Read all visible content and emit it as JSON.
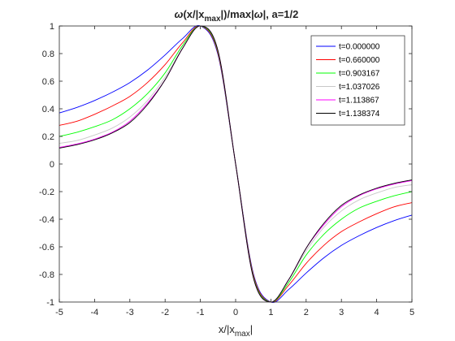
{
  "chart_data": {
    "type": "line",
    "title": "ω(x/|x_max|)/max|ω|, a=1/2",
    "title_parts": {
      "omega_symbol": "ω",
      "open": "(x/|x",
      "subscript": "max",
      "close": "|)/max|",
      "omega_symbol2": "ω",
      "tail": "|, a=1/2"
    },
    "xlabel": "x/|x_max|",
    "xlabel_parts": {
      "base": "x/|x",
      "subscript": "max",
      "close": "|"
    },
    "ylabel": "",
    "xlim": [
      -5,
      5
    ],
    "ylim": [
      -1,
      1
    ],
    "xticks": [
      -5,
      -4,
      -3,
      -2,
      -1,
      0,
      1,
      2,
      3,
      4,
      5
    ],
    "yticks": [
      -1,
      -0.8,
      -0.6,
      -0.4,
      -0.2,
      0,
      0.2,
      0.4,
      0.6,
      0.8,
      1
    ],
    "xtick_labels": [
      "-5",
      "-4",
      "-3",
      "-2",
      "-1",
      "0",
      "1",
      "2",
      "3",
      "4",
      "5"
    ],
    "ytick_labels": [
      "-1",
      "-0.8",
      "-0.6",
      "-0.4",
      "-0.2",
      "0",
      "0.2",
      "0.4",
      "0.6",
      "0.8",
      "1"
    ],
    "grid": false,
    "legend_position": "top-right",
    "series": [
      {
        "name": "t=0.000000",
        "color": "#0000ff",
        "points": [
          [
            -5,
            0.37
          ],
          [
            -4.5,
            0.41
          ],
          [
            -4,
            0.46
          ],
          [
            -3.5,
            0.52
          ],
          [
            -3,
            0.59
          ],
          [
            -2.5,
            0.68
          ],
          [
            -2,
            0.79
          ],
          [
            -1.5,
            0.91
          ],
          [
            -1,
            1.0
          ],
          [
            -0.5,
            0.79
          ],
          [
            0,
            0.0
          ],
          [
            0.5,
            -0.79
          ],
          [
            1,
            -1.0
          ],
          [
            1.5,
            -0.91
          ],
          [
            2,
            -0.79
          ],
          [
            2.5,
            -0.68
          ],
          [
            3,
            -0.59
          ],
          [
            3.5,
            -0.52
          ],
          [
            4,
            -0.46
          ],
          [
            4.5,
            -0.41
          ],
          [
            5,
            -0.37
          ]
        ]
      },
      {
        "name": "t=0.660000",
        "color": "#ff0000",
        "points": [
          [
            -5,
            0.28
          ],
          [
            -4.5,
            0.31
          ],
          [
            -4,
            0.36
          ],
          [
            -3.5,
            0.42
          ],
          [
            -3,
            0.49
          ],
          [
            -2.5,
            0.59
          ],
          [
            -2,
            0.72
          ],
          [
            -1.5,
            0.88
          ],
          [
            -1,
            1.0
          ],
          [
            -0.5,
            0.8
          ],
          [
            0,
            0.0
          ],
          [
            0.5,
            -0.8
          ],
          [
            1,
            -1.0
          ],
          [
            1.5,
            -0.88
          ],
          [
            2,
            -0.72
          ],
          [
            2.5,
            -0.59
          ],
          [
            3,
            -0.49
          ],
          [
            3.5,
            -0.42
          ],
          [
            4,
            -0.36
          ],
          [
            4.5,
            -0.31
          ],
          [
            5,
            -0.28
          ]
        ]
      },
      {
        "name": "t=0.903167",
        "color": "#00ff00",
        "points": [
          [
            -5,
            0.2
          ],
          [
            -4.5,
            0.23
          ],
          [
            -4,
            0.27
          ],
          [
            -3.5,
            0.32
          ],
          [
            -3,
            0.4
          ],
          [
            -2.5,
            0.51
          ],
          [
            -2,
            0.66
          ],
          [
            -1.5,
            0.86
          ],
          [
            -1,
            1.0
          ],
          [
            -0.5,
            0.81
          ],
          [
            0,
            0.0
          ],
          [
            0.5,
            -0.81
          ],
          [
            1,
            -1.0
          ],
          [
            1.5,
            -0.86
          ],
          [
            2,
            -0.66
          ],
          [
            2.5,
            -0.51
          ],
          [
            3,
            -0.4
          ],
          [
            3.5,
            -0.32
          ],
          [
            4,
            -0.27
          ],
          [
            4.5,
            -0.23
          ],
          [
            5,
            -0.2
          ]
        ]
      },
      {
        "name": "t=1.037026",
        "color": "#c8c8c8",
        "points": [
          [
            -5,
            0.15
          ],
          [
            -4.5,
            0.17
          ],
          [
            -4,
            0.21
          ],
          [
            -3.5,
            0.26
          ],
          [
            -3,
            0.34
          ],
          [
            -2.5,
            0.46
          ],
          [
            -2,
            0.63
          ],
          [
            -1.5,
            0.84
          ],
          [
            -1,
            1.0
          ],
          [
            -0.5,
            0.82
          ],
          [
            0,
            0.0
          ],
          [
            0.5,
            -0.82
          ],
          [
            1,
            -1.0
          ],
          [
            1.5,
            -0.84
          ],
          [
            2,
            -0.63
          ],
          [
            2.5,
            -0.46
          ],
          [
            3,
            -0.34
          ],
          [
            3.5,
            -0.26
          ],
          [
            4,
            -0.21
          ],
          [
            4.5,
            -0.17
          ],
          [
            5,
            -0.15
          ]
        ]
      },
      {
        "name": "t=1.113867",
        "color": "#ff00ff",
        "points": [
          [
            -5,
            0.12
          ],
          [
            -4.5,
            0.145
          ],
          [
            -4,
            0.18
          ],
          [
            -3.5,
            0.23
          ],
          [
            -3,
            0.31
          ],
          [
            -2.5,
            0.44
          ],
          [
            -2,
            0.61
          ],
          [
            -1.5,
            0.84
          ],
          [
            -1,
            1.0
          ],
          [
            -0.5,
            0.82
          ],
          [
            0,
            0.0
          ],
          [
            0.5,
            -0.82
          ],
          [
            1,
            -1.0
          ],
          [
            1.5,
            -0.84
          ],
          [
            2,
            -0.61
          ],
          [
            2.5,
            -0.44
          ],
          [
            3,
            -0.31
          ],
          [
            3.5,
            -0.23
          ],
          [
            4,
            -0.18
          ],
          [
            4.5,
            -0.145
          ],
          [
            5,
            -0.12
          ]
        ]
      },
      {
        "name": "t=1.138374",
        "color": "#000000",
        "points": [
          [
            -5,
            0.115
          ],
          [
            -4.5,
            0.14
          ],
          [
            -4,
            0.175
          ],
          [
            -3.5,
            0.225
          ],
          [
            -3,
            0.3
          ],
          [
            -2.5,
            0.43
          ],
          [
            -2,
            0.61
          ],
          [
            -1.5,
            0.84
          ],
          [
            -1,
            1.0
          ],
          [
            -0.5,
            0.82
          ],
          [
            0,
            0.0
          ],
          [
            0.5,
            -0.82
          ],
          [
            1,
            -1.0
          ],
          [
            1.5,
            -0.84
          ],
          [
            2,
            -0.61
          ],
          [
            2.5,
            -0.43
          ],
          [
            3,
            -0.3
          ],
          [
            3.5,
            -0.225
          ],
          [
            4,
            -0.175
          ],
          [
            4.5,
            -0.14
          ],
          [
            5,
            -0.115
          ]
        ]
      }
    ]
  }
}
